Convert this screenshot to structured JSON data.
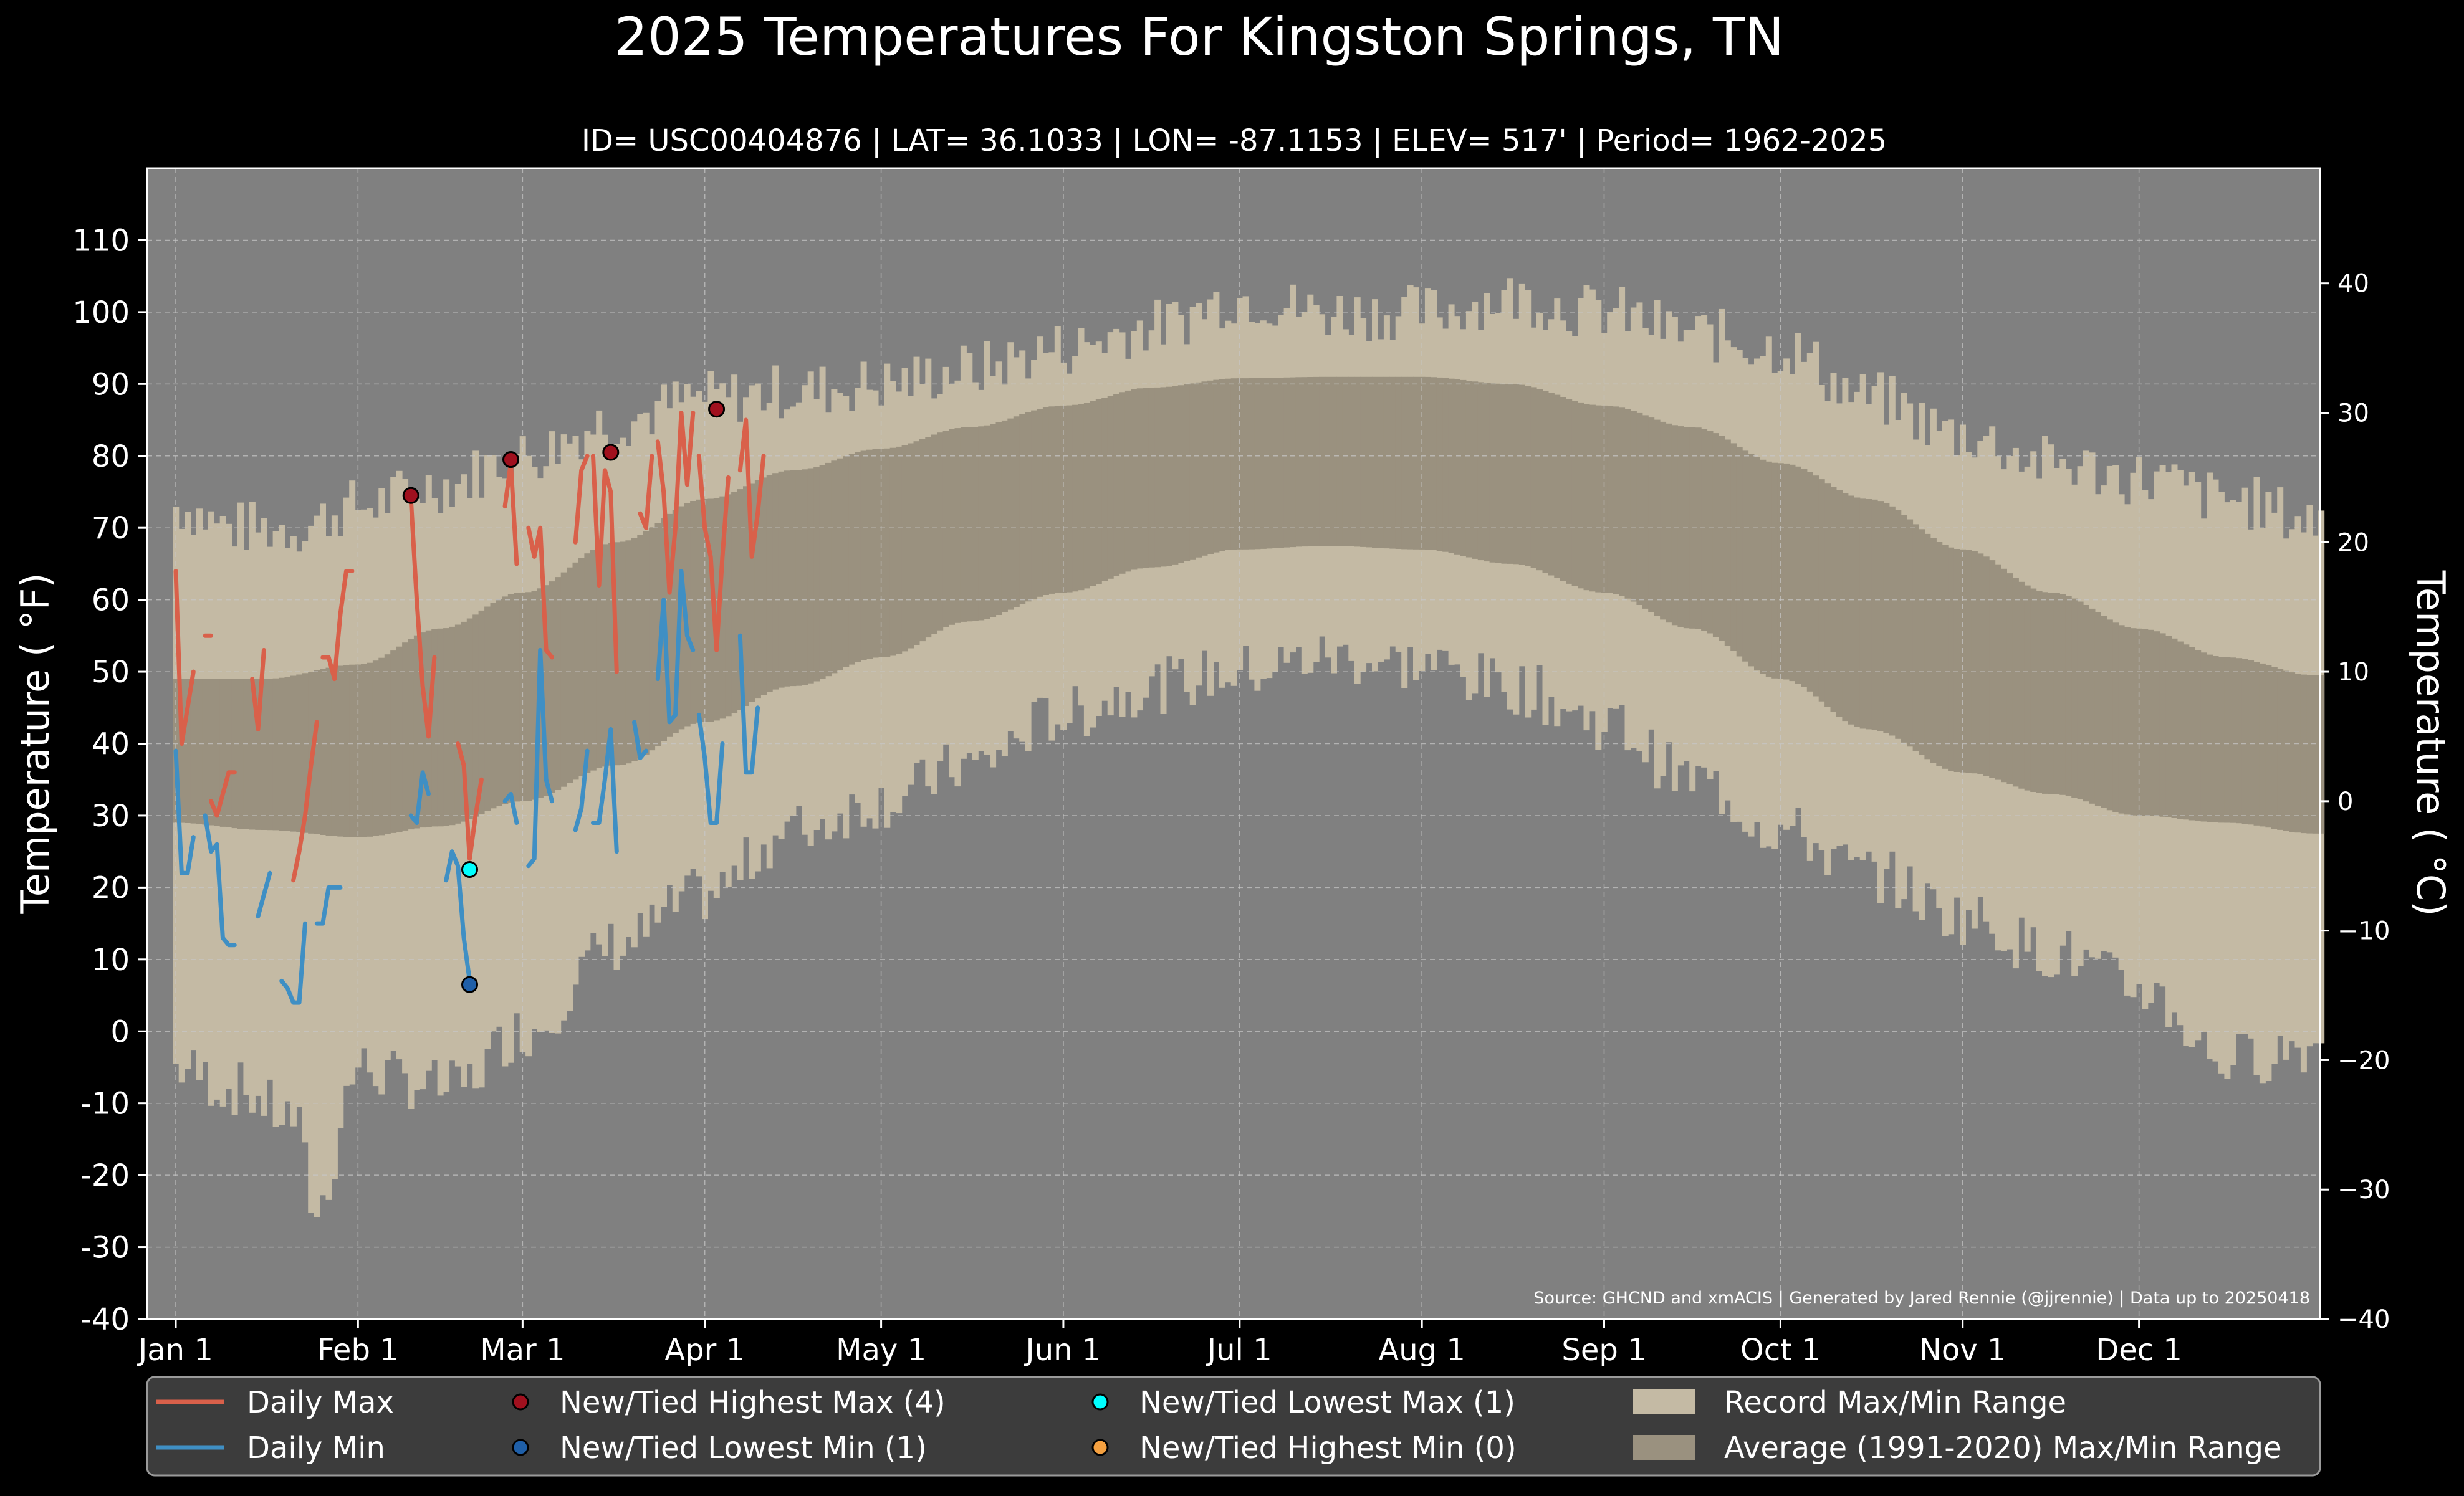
{
  "chart_data": {
    "type": "line",
    "title": "2025 Temperatures For Kingston Springs, TN",
    "subtitle": "ID= USC00404876 | LAT= 36.1033 | LON= -87.1153 | ELEV= 517' | Period= 1962-2025",
    "ylabel": "Temperature ( °F)",
    "ylabel_right": "Temperature ( °C)",
    "source": "Source: GHCND and xmACIS | Generated by Jared Rennie (@jjrennie) | Data up to 20250418",
    "ylim": [
      -40,
      120
    ],
    "ylim_right": [
      -40,
      48.9
    ],
    "xlim_days": [
      0,
      365
    ],
    "yticks": [
      "-40",
      "-30",
      "-20",
      "-10",
      "0",
      "10",
      "20",
      "30",
      "40",
      "50",
      "60",
      "70",
      "80",
      "90",
      "100",
      "110"
    ],
    "yticks_right": [
      "−40",
      "−30",
      "−20",
      "−10",
      "0",
      "10",
      "20",
      "30",
      "40"
    ],
    "x_ticks": [
      "Jan 1",
      "Feb 1",
      "Mar 1",
      "Apr 1",
      "May 1",
      "Jun 1",
      "Jul 1",
      "Aug 1",
      "Sep 1",
      "Oct 1",
      "Nov 1",
      "Dec 1"
    ],
    "grid": true,
    "legend_position": "bottom",
    "colors": {
      "figure_bg": "#000000",
      "plot_bg": "#808080",
      "record_range": "#c4baa4",
      "average_range": "#9a917f",
      "daily_max": "#d9604a",
      "daily_min": "#3f8fc4",
      "highest_max_marker": "#a0101e",
      "lowest_min_marker": "#1f5fa8",
      "lowest_max_marker": "#00ffff",
      "highest_min_marker": "#f4a040",
      "legend_bg": "#3c3c3c"
    },
    "legend": [
      {
        "label": "Daily Max",
        "kind": "line",
        "color": "#d9604a"
      },
      {
        "label": "Daily Min",
        "kind": "line",
        "color": "#3f8fc4"
      },
      {
        "label": "New/Tied Highest Max (4)",
        "kind": "marker",
        "color": "#a0101e"
      },
      {
        "label": "New/Tied Lowest Min (1)",
        "kind": "marker",
        "color": "#1f5fa8"
      },
      {
        "label": "New/Tied Lowest Max (1)",
        "kind": "marker",
        "color": "#00ffff"
      },
      {
        "label": "New/Tied Highest Min (0)",
        "kind": "marker",
        "color": "#f4a040"
      },
      {
        "label": "Record Max/Min Range",
        "kind": "patch",
        "color": "#c4baa4"
      },
      {
        "label": "Average (1991-2020) Max/Min Range",
        "kind": "patch",
        "color": "#9a917f"
      }
    ],
    "average_range": {
      "max_knots": [
        [
          0,
          49
        ],
        [
          15,
          49
        ],
        [
          31,
          51
        ],
        [
          45,
          56
        ],
        [
          59,
          61
        ],
        [
          75,
          68
        ],
        [
          90,
          74
        ],
        [
          105,
          78
        ],
        [
          120,
          81
        ],
        [
          135,
          84
        ],
        [
          151,
          87
        ],
        [
          166,
          89.5
        ],
        [
          181,
          90.8
        ],
        [
          196,
          91
        ],
        [
          212,
          91
        ],
        [
          227,
          90
        ],
        [
          243,
          87
        ],
        [
          258,
          84
        ],
        [
          273,
          79
        ],
        [
          288,
          74
        ],
        [
          304,
          67
        ],
        [
          319,
          61
        ],
        [
          334,
          56
        ],
        [
          349,
          52
        ],
        [
          364,
          49.5
        ]
      ],
      "min_knots": [
        [
          0,
          29
        ],
        [
          15,
          28
        ],
        [
          31,
          27
        ],
        [
          45,
          28.5
        ],
        [
          59,
          32
        ],
        [
          75,
          37
        ],
        [
          90,
          43
        ],
        [
          105,
          48
        ],
        [
          120,
          52
        ],
        [
          135,
          57
        ],
        [
          151,
          61
        ],
        [
          166,
          64.5
        ],
        [
          181,
          67
        ],
        [
          196,
          67.5
        ],
        [
          212,
          67
        ],
        [
          227,
          65
        ],
        [
          243,
          61
        ],
        [
          258,
          56
        ],
        [
          273,
          49
        ],
        [
          288,
          42
        ],
        [
          304,
          36
        ],
        [
          319,
          33
        ],
        [
          334,
          30
        ],
        [
          349,
          29
        ],
        [
          364,
          27.5
        ]
      ]
    },
    "record_range": {
      "max_knots": [
        [
          0,
          73
        ],
        [
          10,
          70
        ],
        [
          20,
          70
        ],
        [
          31,
          73
        ],
        [
          45,
          76
        ],
        [
          59,
          80
        ],
        [
          75,
          85
        ],
        [
          90,
          88
        ],
        [
          105,
          89
        ],
        [
          120,
          90
        ],
        [
          135,
          92
        ],
        [
          151,
          95
        ],
        [
          166,
          98
        ],
        [
          181,
          102
        ],
        [
          196,
          100
        ],
        [
          212,
          100
        ],
        [
          227,
          102
        ],
        [
          243,
          100
        ],
        [
          258,
          97
        ],
        [
          273,
          95
        ],
        [
          288,
          88
        ],
        [
          304,
          83
        ],
        [
          319,
          79
        ],
        [
          334,
          77
        ],
        [
          349,
          74
        ],
        [
          364,
          71
        ]
      ],
      "min_knots": [
        [
          0,
          -5
        ],
        [
          10,
          -8
        ],
        [
          20,
          -12
        ],
        [
          24,
          -25
        ],
        [
          31,
          -5
        ],
        [
          40,
          -7
        ],
        [
          47,
          -8
        ],
        [
          59,
          0
        ],
        [
          75,
          12
        ],
        [
          90,
          19
        ],
        [
          105,
          28
        ],
        [
          120,
          32
        ],
        [
          135,
          37
        ],
        [
          151,
          44
        ],
        [
          166,
          48
        ],
        [
          181,
          50
        ],
        [
          196,
          52
        ],
        [
          212,
          51
        ],
        [
          227,
          48
        ],
        [
          243,
          43
        ],
        [
          258,
          35
        ],
        [
          273,
          28
        ],
        [
          288,
          22
        ],
        [
          304,
          16
        ],
        [
          319,
          11
        ],
        [
          334,
          6
        ],
        [
          349,
          -4
        ],
        [
          364,
          -2
        ]
      ],
      "noise_amplitude": 4
    },
    "series": [
      {
        "name": "Daily Max",
        "segments": [
          [
            [
              0,
              64
            ],
            [
              1,
              40
            ],
            [
              2,
              45
            ],
            [
              3,
              50
            ]
          ],
          [
            [
              5,
              55
            ],
            [
              6,
              55
            ]
          ],
          [
            [
              6,
              32
            ],
            [
              7,
              30
            ],
            [
              8,
              33
            ],
            [
              9,
              36
            ],
            [
              10,
              36
            ]
          ],
          [
            [
              13,
              49
            ],
            [
              14,
              42
            ],
            [
              15,
              53
            ]
          ],
          [
            [
              20,
              21
            ],
            [
              21,
              25
            ],
            [
              22,
              30
            ],
            [
              23,
              37
            ],
            [
              24,
              43
            ]
          ],
          [
            [
              25,
              52
            ],
            [
              26,
              52
            ],
            [
              27,
              49
            ],
            [
              28,
              58
            ],
            [
              29,
              64
            ],
            [
              30,
              64
            ]
          ],
          [
            [
              40,
              74
            ],
            [
              41,
              60
            ],
            [
              42,
              48
            ],
            [
              43,
              41
            ],
            [
              44,
              52
            ]
          ],
          [
            [
              48,
              40
            ],
            [
              49,
              37
            ],
            [
              50,
              24
            ],
            [
              51,
              30
            ],
            [
              52,
              35
            ]
          ],
          [
            [
              56,
              73
            ],
            [
              57,
              79
            ],
            [
              58,
              65
            ]
          ],
          [
            [
              60,
              70
            ],
            [
              61,
              66
            ],
            [
              62,
              70
            ],
            [
              63,
              53
            ],
            [
              64,
              52
            ]
          ],
          [
            [
              68,
              68
            ],
            [
              69,
              78
            ],
            [
              70,
              80
            ]
          ],
          [
            [
              71,
              80
            ],
            [
              72,
              62
            ],
            [
              73,
              78
            ],
            [
              74,
              75
            ],
            [
              75,
              50
            ]
          ],
          [
            [
              79,
              72
            ],
            [
              80,
              70
            ],
            [
              81,
              80
            ]
          ],
          [
            [
              82,
              82
            ],
            [
              83,
              75
            ],
            [
              84,
              61
            ],
            [
              85,
              70
            ],
            [
              86,
              86
            ],
            [
              87,
              76
            ],
            [
              88,
              86
            ]
          ],
          [
            [
              89,
              80
            ],
            [
              90,
              70
            ],
            [
              91,
              66
            ],
            [
              92,
              53
            ],
            [
              93,
              66
            ],
            [
              94,
              77
            ]
          ],
          [
            [
              96,
              78
            ],
            [
              97,
              85
            ],
            [
              98,
              66
            ],
            [
              99,
              72
            ],
            [
              100,
              80
            ]
          ]
        ]
      },
      {
        "name": "Daily Min",
        "segments": [
          [
            [
              0,
              39
            ],
            [
              1,
              22
            ],
            [
              2,
              22
            ],
            [
              3,
              27
            ]
          ],
          [
            [
              5,
              30
            ],
            [
              6,
              25
            ],
            [
              7,
              26
            ],
            [
              8,
              13
            ],
            [
              9,
              12
            ],
            [
              10,
              12
            ]
          ],
          [
            [
              14,
              16
            ],
            [
              15,
              19
            ],
            [
              16,
              22
            ]
          ],
          [
            [
              18,
              7
            ],
            [
              19,
              6
            ],
            [
              20,
              4
            ],
            [
              21,
              4
            ],
            [
              22,
              15
            ]
          ],
          [
            [
              24,
              15
            ],
            [
              25,
              15
            ],
            [
              26,
              20
            ],
            [
              27,
              20
            ],
            [
              28,
              20
            ]
          ],
          [
            [
              40,
              30
            ],
            [
              41,
              29
            ],
            [
              42,
              36
            ],
            [
              43,
              33
            ]
          ],
          [
            [
              46,
              21
            ],
            [
              47,
              25
            ],
            [
              48,
              23
            ],
            [
              49,
              13
            ],
            [
              50,
              7
            ]
          ],
          [
            [
              56,
              32
            ],
            [
              57,
              33
            ],
            [
              58,
              29
            ]
          ],
          [
            [
              60,
              23
            ],
            [
              61,
              24
            ],
            [
              62,
              53
            ],
            [
              63,
              35
            ],
            [
              64,
              32
            ]
          ],
          [
            [
              68,
              28
            ],
            [
              69,
              31
            ],
            [
              70,
              39
            ]
          ],
          [
            [
              71,
              29
            ],
            [
              72,
              29
            ],
            [
              73,
              35
            ],
            [
              74,
              42
            ],
            [
              75,
              25
            ]
          ],
          [
            [
              78,
              43
            ],
            [
              79,
              38
            ],
            [
              80,
              39
            ]
          ],
          [
            [
              82,
              49
            ],
            [
              83,
              60
            ],
            [
              84,
              43
            ],
            [
              85,
              44
            ],
            [
              86,
              64
            ],
            [
              87,
              55
            ],
            [
              88,
              53
            ]
          ],
          [
            [
              89,
              44
            ],
            [
              90,
              38
            ],
            [
              91,
              29
            ],
            [
              92,
              29
            ],
            [
              93,
              40
            ]
          ],
          [
            [
              96,
              55
            ],
            [
              97,
              36
            ],
            [
              98,
              36
            ],
            [
              99,
              45
            ]
          ]
        ]
      }
    ],
    "markers": [
      {
        "type": "New/Tied Highest Max",
        "points": [
          [
            40,
            74.5
          ],
          [
            57,
            79.5
          ],
          [
            74,
            80.5
          ],
          [
            92,
            86.5
          ]
        ]
      },
      {
        "type": "New/Tied Lowest Min",
        "points": [
          [
            50,
            6.5
          ]
        ]
      },
      {
        "type": "New/Tied Lowest Max",
        "points": [
          [
            50,
            22.5
          ]
        ]
      },
      {
        "type": "New/Tied Highest Min",
        "points": []
      }
    ]
  }
}
